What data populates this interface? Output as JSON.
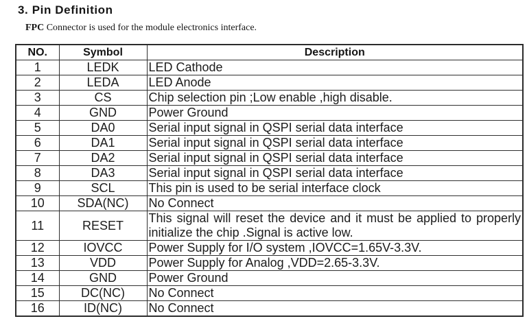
{
  "page": {
    "title": "3. Pin Definition",
    "intro_bold": "FPC",
    "intro_rest": " Connector is used for the module electronics interface."
  },
  "table": {
    "headers": {
      "no": "NO.",
      "symbol": "Symbol",
      "description": "Description"
    },
    "rows": [
      {
        "no": "1",
        "symbol": "LEDK",
        "description": "LED Cathode"
      },
      {
        "no": "2",
        "symbol": "LEDA",
        "description": "LED Anode"
      },
      {
        "no": "3",
        "symbol": "CS",
        "description": "Chip selection pin ;Low enable ,high disable."
      },
      {
        "no": "4",
        "symbol": "GND",
        "description": "Power Ground"
      },
      {
        "no": "5",
        "symbol": "DA0",
        "description": "Serial input signal in QSPI serial data interface"
      },
      {
        "no": "6",
        "symbol": "DA1",
        "description": "Serial input signal in QSPI serial data interface"
      },
      {
        "no": "7",
        "symbol": "DA2",
        "description": "Serial input signal in QSPI serial data interface"
      },
      {
        "no": "8",
        "symbol": "DA3",
        "description": "Serial input signal in QSPI serial data interface"
      },
      {
        "no": "9",
        "symbol": "SCL",
        "description": "This pin is used to be serial interface clock"
      },
      {
        "no": "10",
        "symbol": "SDA(NC)",
        "description": "No Connect"
      },
      {
        "no": "11",
        "symbol": "RESET",
        "description": "This signal will reset the device and it must be applied to properly initialize the chip .Signal is active low."
      },
      {
        "no": "12",
        "symbol": "IOVCC",
        "description": "Power Supply for I/O system ,IOVCC=1.65V-3.3V."
      },
      {
        "no": "13",
        "symbol": "VDD",
        "description": "Power Supply for Analog ,VDD=2.65-3.3V."
      },
      {
        "no": "14",
        "symbol": "GND",
        "description": "Power Ground"
      },
      {
        "no": "15",
        "symbol": "DC(NC)",
        "description": "No Connect"
      },
      {
        "no": "16",
        "symbol": "ID(NC)",
        "description": "No Connect"
      }
    ]
  }
}
